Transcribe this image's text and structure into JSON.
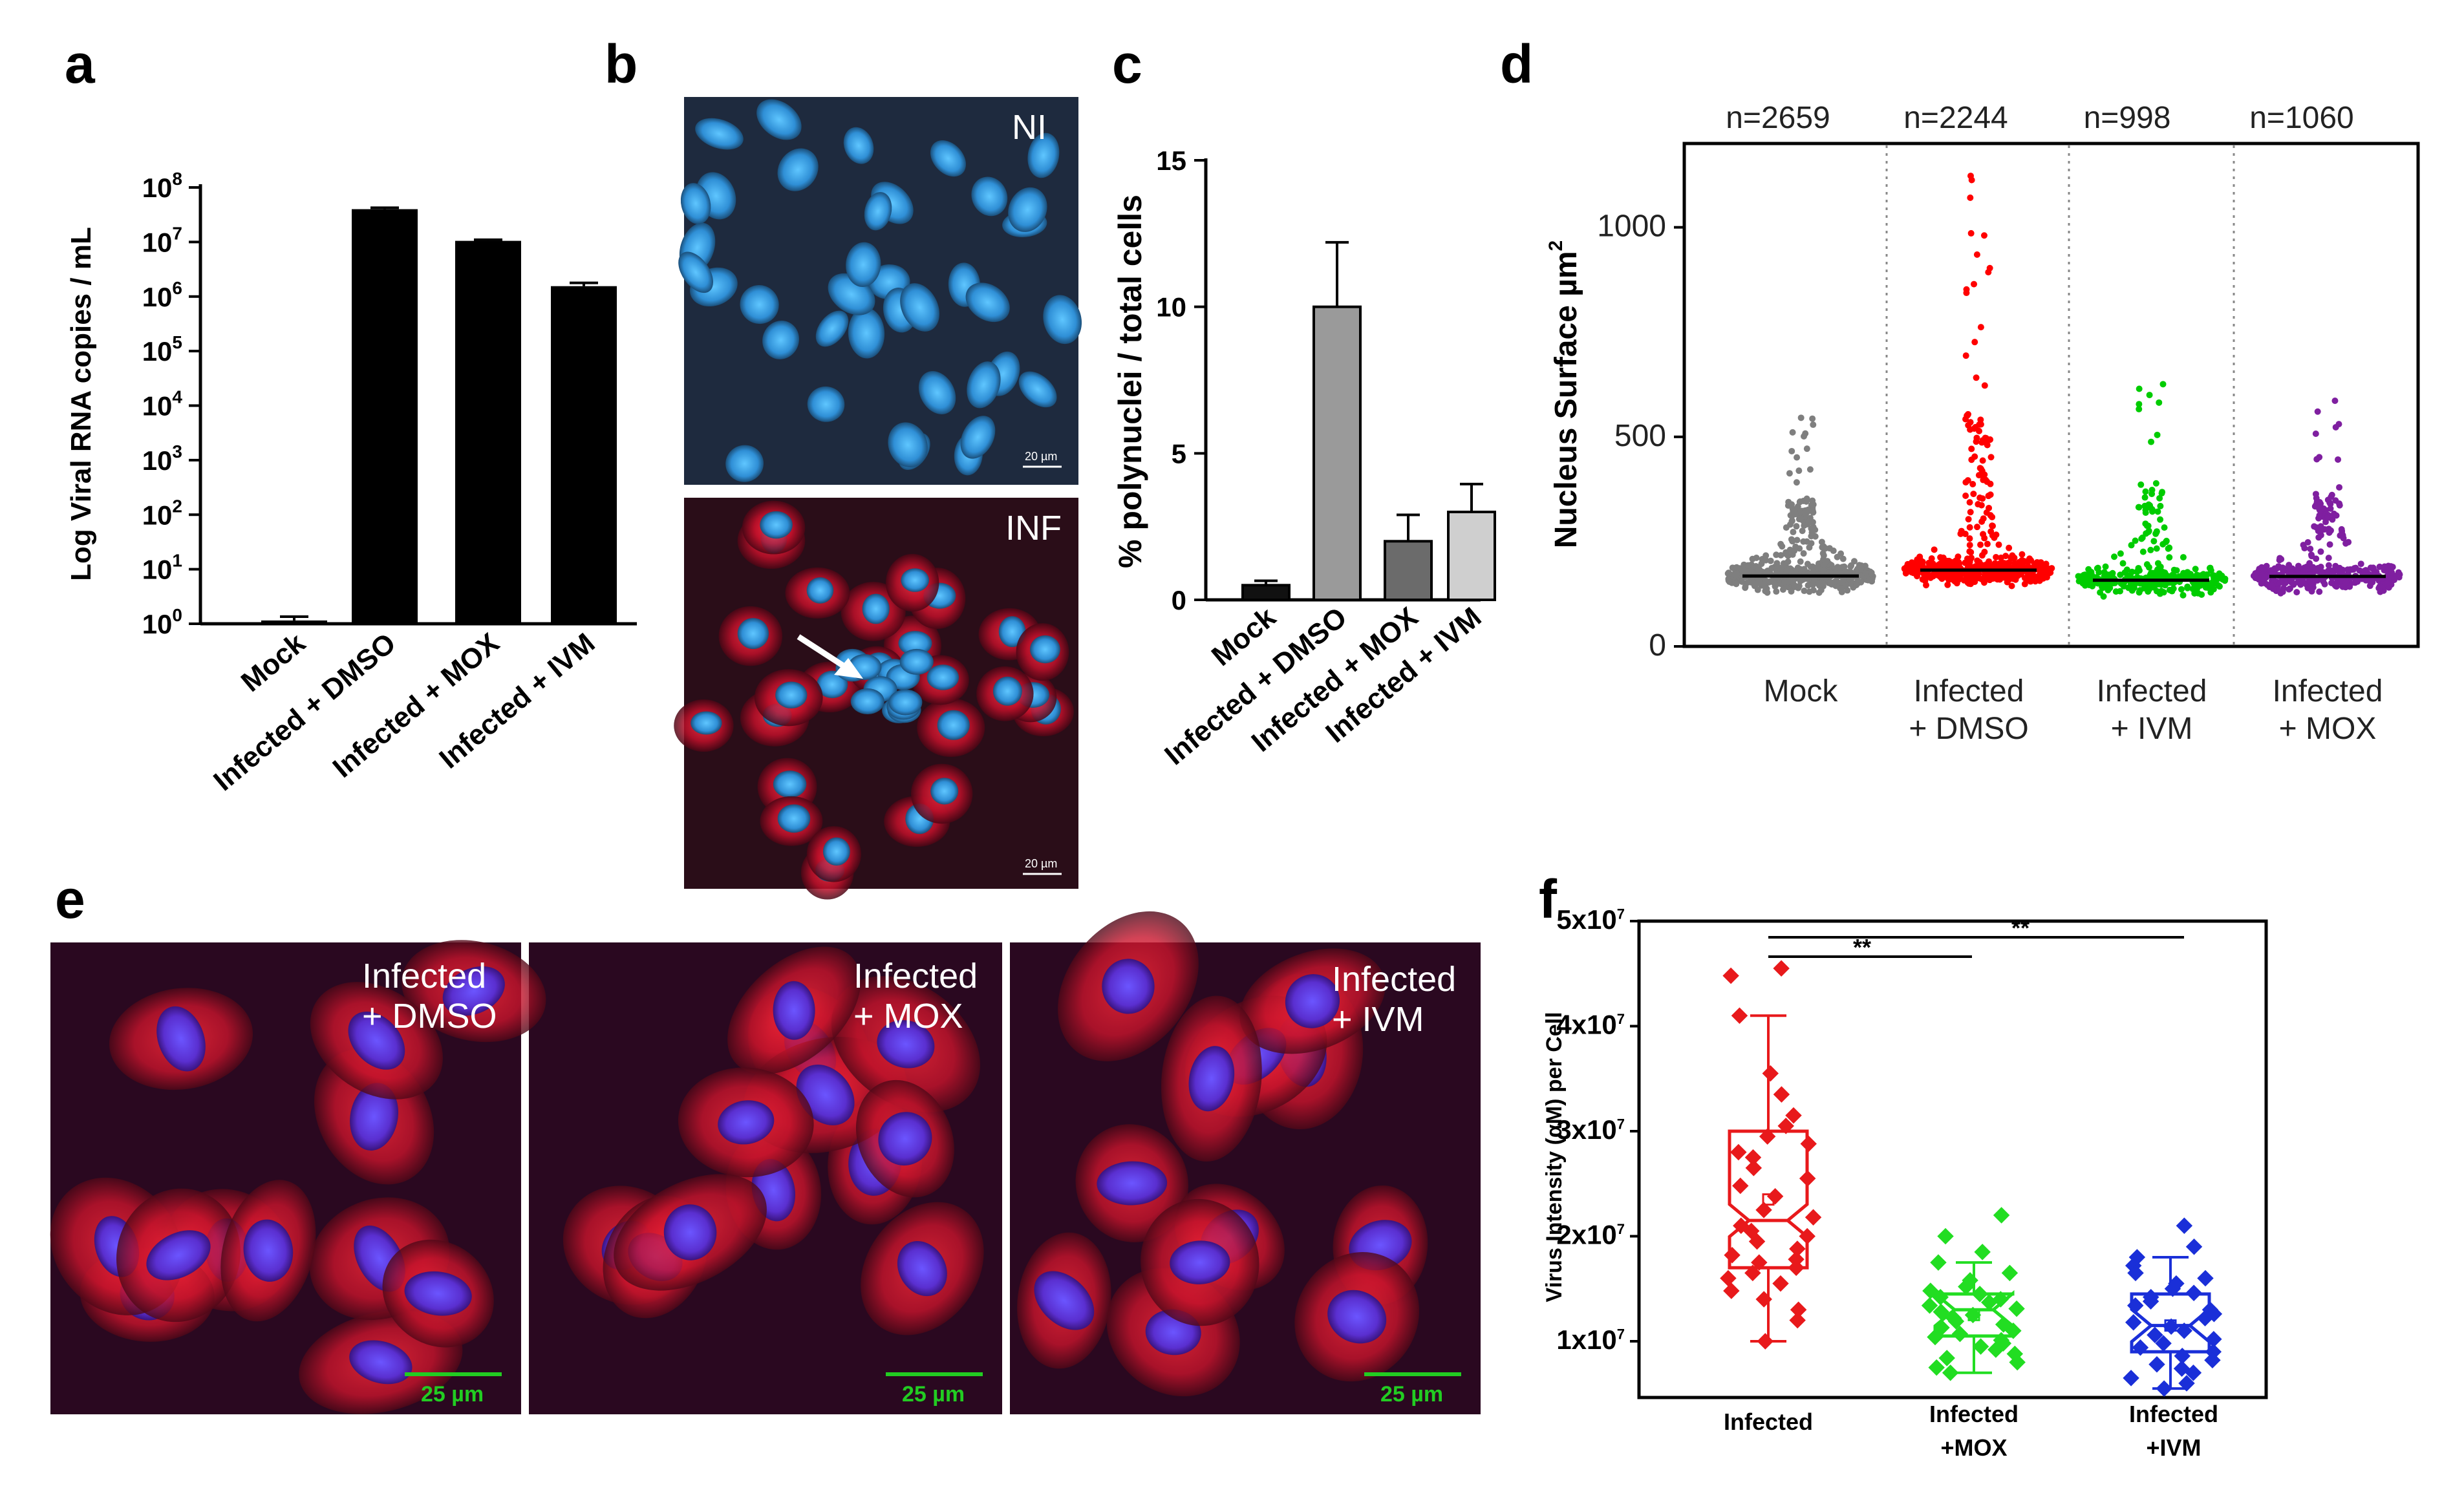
{
  "panels": {
    "a": "a",
    "b": "b",
    "c": "c",
    "d": "d",
    "e": "e",
    "f": "f"
  },
  "colors": {
    "mock": "#7f7f7f",
    "dmso": "#ff0000",
    "ivm_d": "#00cc00",
    "mox_d": "#7f1fa0",
    "f_infected": "#e8191b",
    "f_mox": "#22dd22",
    "f_ivm": "#1a2fd8",
    "bar_a": "#000000",
    "c_mock": "#111111",
    "c_dmso": "#9a9a9a",
    "c_mox": "#6b6b6b",
    "c_ivm": "#cfcfcf"
  },
  "chart_data": [
    {
      "id": "a",
      "type": "bar",
      "ylabel": "Log Viral RNA copies / mL",
      "yscale": "log",
      "ylim": [
        1,
        100000000
      ],
      "ytick_labels": [
        "10^0",
        "10^1",
        "10^2",
        "10^3",
        "10^4",
        "10^5",
        "10^6",
        "10^7",
        "10^8"
      ],
      "categories": [
        "Mock",
        "Infected + DMSO",
        "Infected + MOX",
        "Infected + IVM"
      ],
      "values": [
        1.15,
        40000000,
        10500000,
        1550000
      ],
      "errors_upper": [
        1.35,
        42500000,
        11000000,
        1780000
      ]
    },
    {
      "id": "c",
      "type": "bar",
      "ylabel": "% polynuclei / total cells",
      "ylim": [
        0,
        15
      ],
      "yticks": [
        0,
        5,
        10,
        15
      ],
      "categories": [
        "Mock",
        "Infected + DMSO",
        "Infected + MOX",
        "Infected + IVM"
      ],
      "values": [
        0.5,
        10.0,
        2.0,
        3.0
      ],
      "errors_upper": [
        0.65,
        12.2,
        2.9,
        3.95
      ]
    },
    {
      "id": "d",
      "type": "scatter",
      "ylabel": "Nucleus Surface µm",
      "ylabel_sup": "2",
      "ylim": [
        0,
        1200
      ],
      "yticks": [
        0,
        500,
        1000
      ],
      "categories": [
        "Mock",
        "Infected + DMSO",
        "Infected + IVM",
        "Infected + MOX"
      ],
      "category_lines": [
        [
          "Mock"
        ],
        [
          "Infected",
          "+ DMSO"
        ],
        [
          "Infected",
          "+ IVM"
        ],
        [
          "Infected",
          "+ MOX"
        ]
      ],
      "counts": [
        "n=2659",
        "n=2244",
        "n=998",
        "n=1060"
      ],
      "medians": [
        168,
        182,
        158,
        167
      ],
      "max_values": [
        570,
        1150,
        650,
        610
      ]
    },
    {
      "id": "f",
      "type": "box",
      "ylabel": "Virus Intensity (αM) per Cell",
      "ylim": [
        5000000,
        50000000
      ],
      "ytick_labels": [
        "1x10^7",
        "2x10^7",
        "3x10^7",
        "4x10^7",
        "5x10^7"
      ],
      "yticks": [
        10000000,
        20000000,
        30000000,
        40000000,
        50000000
      ],
      "category_lines": [
        [
          "Infected"
        ],
        [
          "Infected",
          "+MOX"
        ],
        [
          "Infected",
          "+IVM"
        ]
      ],
      "series": [
        {
          "name": "Infected",
          "q1": 17000000,
          "median": 21500000,
          "q3": 30000000,
          "whisker_low": 10000000,
          "whisker_high": 41000000,
          "mean": 23500000,
          "points": [
            45500000,
            44800000,
            41000000,
            35500000,
            33500000,
            31500000,
            30500000,
            29500000,
            28800000,
            28000000,
            27500000,
            26500000,
            25500000,
            24800000,
            23800000,
            22500000,
            21800000,
            21000000,
            20500000,
            20000000,
            19500000,
            18800000,
            18200000,
            17800000,
            17500000,
            17000000,
            16500000,
            16000000,
            15500000,
            14800000,
            14000000,
            13000000,
            12000000,
            10000000
          ]
        },
        {
          "name": "Infected +MOX",
          "q1": 10500000,
          "median": 13000000,
          "q3": 14500000,
          "whisker_low": 7000000,
          "whisker_high": 17500000,
          "mean": 12500000,
          "points": [
            22000000,
            20000000,
            18500000,
            17500000,
            16500000,
            15800000,
            15200000,
            14800000,
            14500000,
            14200000,
            14000000,
            13700000,
            13400000,
            13100000,
            12800000,
            12500000,
            12200000,
            11900000,
            11600000,
            11300000,
            11000000,
            10700000,
            10400000,
            10100000,
            9800000,
            9500000,
            9200000,
            8800000,
            8400000,
            8000000,
            7500000,
            7000000
          ]
        },
        {
          "name": "Infected +IVM",
          "q1": 9000000,
          "median": 11500000,
          "q3": 14500000,
          "whisker_low": 5500000,
          "whisker_high": 18000000,
          "mean": 11500000,
          "points": [
            21000000,
            19000000,
            18000000,
            17200000,
            16500000,
            16000000,
            15500000,
            15000000,
            14600000,
            14200000,
            13800000,
            13400000,
            13000000,
            12600000,
            12200000,
            11800000,
            11400000,
            11000000,
            10600000,
            10200000,
            9800000,
            9400000,
            9000000,
            8600000,
            8200000,
            7800000,
            7400000,
            7000000,
            6500000,
            6000000,
            5500000
          ]
        }
      ],
      "significance": [
        "**",
        "**"
      ]
    }
  ],
  "images": {
    "b_top_label": "NI",
    "b_bottom_label": "INF",
    "b_scale": "20 µm",
    "e_panels": [
      {
        "line1": "Infected",
        "line2": "+ DMSO",
        "scale": "25 µm"
      },
      {
        "line1": "Infected",
        "line2": "+ MOX",
        "scale": "25 µm"
      },
      {
        "line1": "Infected",
        "line2": "+ IVM",
        "scale": "25 µm"
      }
    ]
  }
}
